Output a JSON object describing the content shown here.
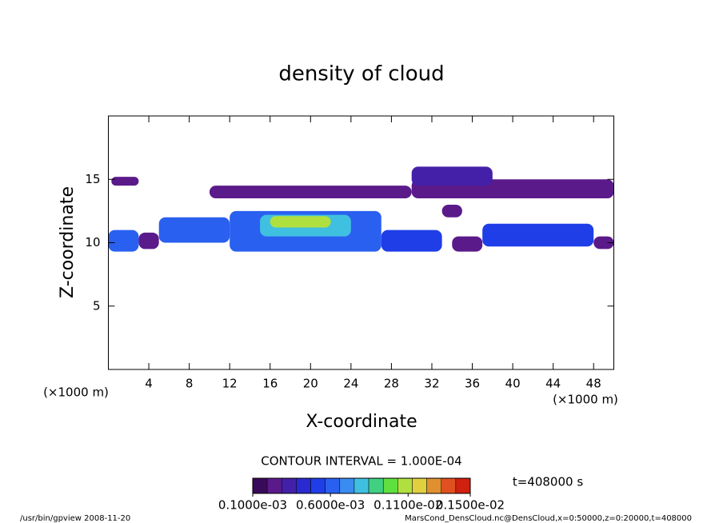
{
  "chart_data": {
    "type": "contour",
    "title": "density of cloud",
    "x_label": "X-coordinate",
    "y_label": "Z-coordinate",
    "x_unit": "(×1000 m)",
    "y_unit": "(×1000 m)",
    "xlim": [
      0,
      50
    ],
    "ylim": [
      0,
      20
    ],
    "xticks": [
      4,
      8,
      12,
      16,
      20,
      24,
      28,
      32,
      36,
      40,
      44,
      48
    ],
    "yticks": [
      5,
      10,
      15
    ],
    "contour_interval": "CONTOUR INTERVAL = 1.000E-04",
    "time_label": "t=408000 s",
    "footer_left": "/usr/bin/gpview   2008-11-20",
    "footer_right": "MarsCond_DensCloud.nc@DensCloud,x=0:50000,z=0:20000,t=408000",
    "colorbar": {
      "levels": [
        0.0001,
        0.0002,
        0.0003,
        0.0004,
        0.0005,
        0.0006,
        0.0007,
        0.0008,
        0.0009,
        0.001,
        0.0011,
        0.0012,
        0.0013,
        0.0014,
        0.0015
      ],
      "colors": [
        "#3a0a5a",
        "#5b1a8a",
        "#4420a8",
        "#2a2ad0",
        "#1f3ee8",
        "#2a60f0",
        "#3a8cf0",
        "#40c0e0",
        "#40d080",
        "#60e040",
        "#b0e040",
        "#e0d040",
        "#e09030",
        "#e05020",
        "#d02010"
      ],
      "ticks": [
        {
          "value": 0.0001,
          "label": "0.1000e-03"
        },
        {
          "value": 0.0006,
          "label": "0.6000e-03"
        },
        {
          "value": 0.0011,
          "label": "0.1100e-02"
        },
        {
          "value": 0.0015,
          "label": "0.1500e-02"
        }
      ]
    },
    "patches": [
      {
        "x": [
          0,
          3
        ],
        "z": [
          9.3,
          11
        ],
        "value": 0.0006
      },
      {
        "x": [
          0.3,
          3
        ],
        "z": [
          14.5,
          15.2
        ],
        "value": 0.0002
      },
      {
        "x": [
          3,
          5
        ],
        "z": [
          9.5,
          10.8
        ],
        "value": 0.0002
      },
      {
        "x": [
          5,
          12
        ],
        "z": [
          10,
          12
        ],
        "value": 0.0006
      },
      {
        "x": [
          12,
          27
        ],
        "z": [
          9.3,
          12.5
        ],
        "value": 0.0006
      },
      {
        "x": [
          15,
          24
        ],
        "z": [
          10.5,
          12.2
        ],
        "value": 0.0008
      },
      {
        "x": [
          16,
          22
        ],
        "z": [
          11.2,
          12.1
        ],
        "value": 0.0011
      },
      {
        "x": [
          27,
          33
        ],
        "z": [
          9.3,
          11
        ],
        "value": 0.0005
      },
      {
        "x": [
          10,
          30
        ],
        "z": [
          13.5,
          14.5
        ],
        "value": 0.0002
      },
      {
        "x": [
          30,
          50
        ],
        "z": [
          13.5,
          15
        ],
        "value": 0.0002
      },
      {
        "x": [
          30,
          38
        ],
        "z": [
          14.5,
          16
        ],
        "value": 0.0003
      },
      {
        "x": [
          33,
          35
        ],
        "z": [
          12,
          13
        ],
        "value": 0.0002
      },
      {
        "x": [
          34,
          37
        ],
        "z": [
          9.3,
          10.5
        ],
        "value": 0.0002
      },
      {
        "x": [
          37,
          48
        ],
        "z": [
          9.7,
          11.5
        ],
        "value": 0.0005
      },
      {
        "x": [
          48,
          50
        ],
        "z": [
          9.5,
          10.5
        ],
        "value": 0.0002
      }
    ]
  }
}
